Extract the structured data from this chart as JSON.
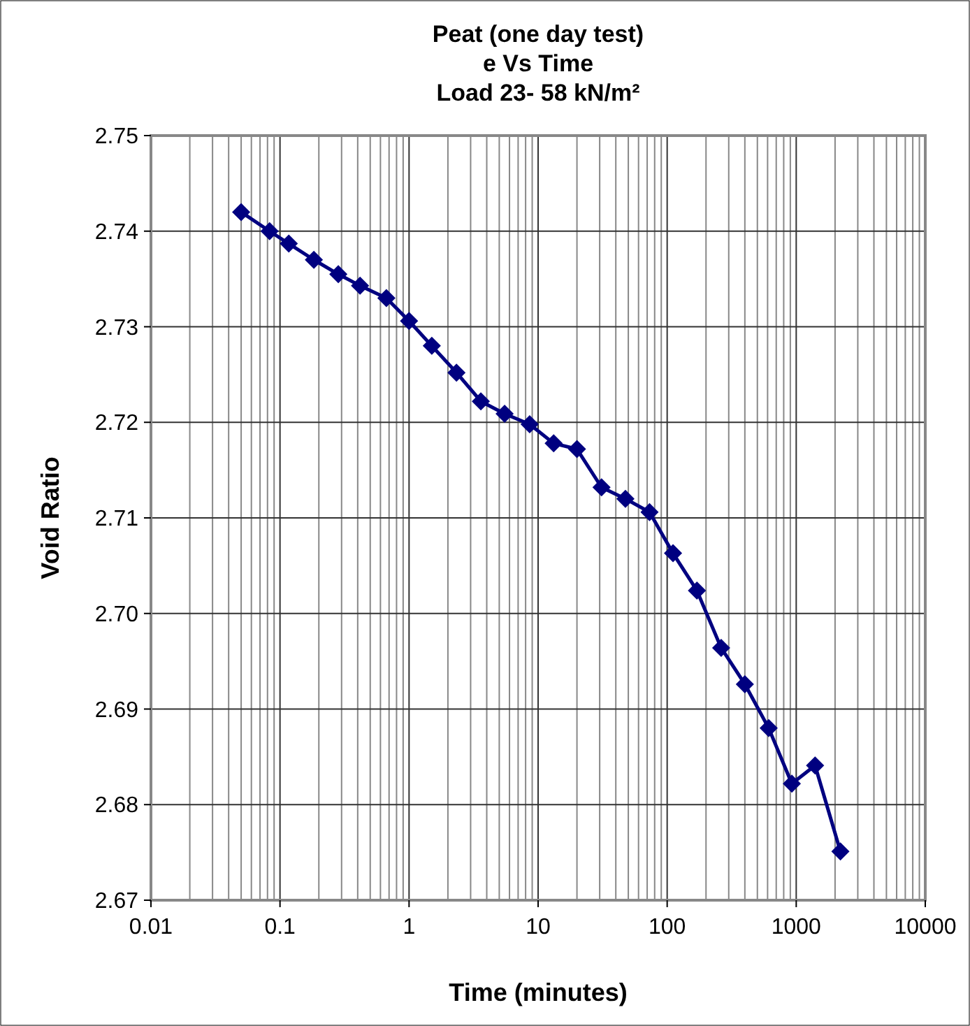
{
  "chart_data": {
    "type": "line",
    "title": "Peat (one day test)\ne Vs Time\nLoad 23- 58 kN/m²",
    "xlabel": "Time (minutes)",
    "ylabel": "Void Ratio",
    "log": "x",
    "grid": true,
    "marker": "diamond",
    "line_style": "solid",
    "x": [
      0.05,
      0.083,
      0.117,
      0.183,
      0.283,
      0.417,
      0.667,
      1,
      1.5,
      2.33,
      3.6,
      5.5,
      8.6,
      13.2,
      20,
      31,
      47.5,
      73,
      111,
      170,
      262,
      400,
      612,
      925,
      1400,
      2200
    ],
    "series": [
      {
        "color": "#000080",
        "values": [
          2.742,
          2.74,
          2.7387,
          2.737,
          2.7355,
          2.7343,
          2.733,
          2.7306,
          2.728,
          2.7252,
          2.7222,
          2.7209,
          2.7198,
          2.7178,
          2.7172,
          2.7132,
          2.712,
          2.7106,
          2.7063,
          2.7024,
          2.6964,
          2.6926,
          2.688,
          2.6822,
          2.6841,
          2.6751
        ]
      }
    ],
    "xlim": [
      0.01,
      10000
    ],
    "xticks": [
      0.01,
      0.1,
      1,
      10,
      100,
      1000,
      10000
    ],
    "ylim": [
      2.67,
      2.75
    ],
    "yticks": [
      {
        "value": 2.67,
        "label": "2.67"
      },
      {
        "value": 2.68,
        "label": "2.68"
      },
      {
        "value": 2.69,
        "label": "2.69"
      },
      {
        "value": 2.7,
        "label": "2.70"
      },
      {
        "value": 2.71,
        "label": "2.71"
      },
      {
        "value": 2.72,
        "label": "2.72"
      },
      {
        "value": 2.73,
        "label": "2.73"
      },
      {
        "value": 2.74,
        "label": "2.74"
      },
      {
        "value": 2.75,
        "label": "2.75"
      }
    ]
  }
}
